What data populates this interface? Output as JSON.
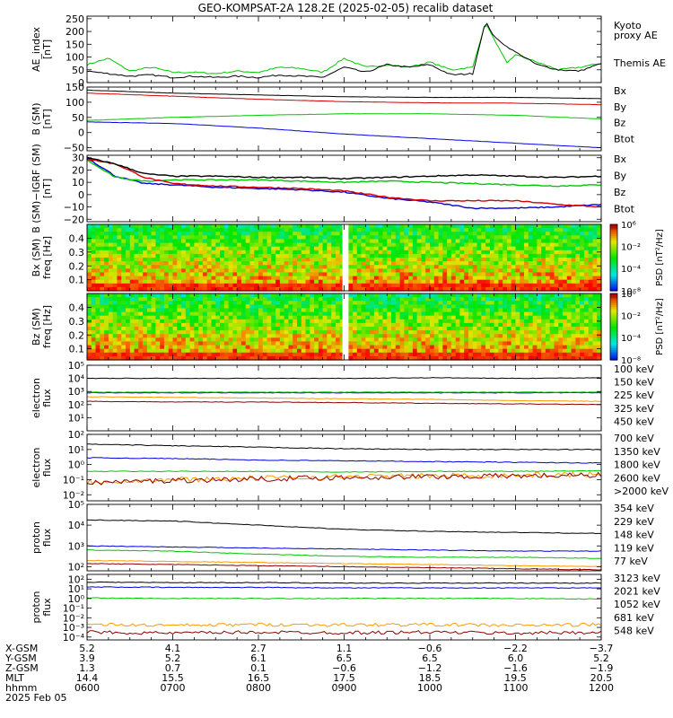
{
  "title": "GEO-KOMPSAT-2A 128.2E (2025-02-05) recalib dataset",
  "colors": {
    "black": "#000000",
    "red": "#d40000",
    "green": "#00c800",
    "blue": "#0000e0",
    "orange": "#ff9900",
    "teal": "#00c8c8",
    "darkred": "#900000",
    "bz": "#c80000"
  },
  "chart_data": [
    {
      "type": "line",
      "panel": "ae",
      "ylabel": [
        "AE_index",
        "[nT]"
      ],
      "ylim": [
        0,
        260
      ],
      "yticks": [
        {
          "v": 0,
          "l": "0"
        },
        {
          "v": 50,
          "l": "50"
        },
        {
          "v": 100,
          "l": "100"
        },
        {
          "v": 150,
          "l": "150"
        },
        {
          "v": 200,
          "l": "200"
        },
        {
          "v": 250,
          "l": "250"
        }
      ],
      "x": [
        6.0,
        6.25,
        6.5,
        6.75,
        7.0,
        7.25,
        7.5,
        7.75,
        8.0,
        8.25,
        8.5,
        8.75,
        9.0,
        9.25,
        9.5,
        9.75,
        10.0,
        10.25,
        10.5,
        10.65,
        10.75,
        10.9,
        11.0,
        11.25,
        11.5,
        11.75,
        12.0
      ],
      "series": [
        {
          "name": "Kyoto proxy AE",
          "color": "#00c800",
          "values": [
            70,
            95,
            45,
            60,
            40,
            40,
            35,
            45,
            40,
            60,
            55,
            40,
            95,
            60,
            70,
            60,
            80,
            50,
            60,
            235,
            170,
            75,
            110,
            80,
            50,
            60,
            75
          ]
        },
        {
          "name": "Themis AE",
          "color": "#000000",
          "values": [
            45,
            35,
            25,
            30,
            20,
            25,
            20,
            25,
            20,
            30,
            25,
            20,
            60,
            40,
            70,
            60,
            70,
            30,
            35,
            240,
            180,
            140,
            120,
            70,
            50,
            45,
            75
          ]
        }
      ],
      "legend": [
        {
          "text": "Kyoto",
          "color": "#00c800"
        },
        {
          "text": "proxy AE",
          "color": "#00c800"
        },
        {
          "text": "Themis AE",
          "color": "#000000"
        }
      ]
    },
    {
      "type": "line",
      "panel": "bsm",
      "ylabel": [
        "B (SM)",
        "[nT]"
      ],
      "ylim": [
        -60,
        150
      ],
      "yticks": [
        {
          "v": -50,
          "l": "−50"
        },
        {
          "v": 0,
          "l": "0"
        },
        {
          "v": 50,
          "l": "50"
        },
        {
          "v": 100,
          "l": "100"
        },
        {
          "v": 150,
          "l": "150"
        }
      ],
      "x": [
        6,
        7,
        8,
        9,
        10,
        11,
        12
      ],
      "series": [
        {
          "name": "Bx",
          "color": "#0000e0",
          "values": [
            35,
            30,
            15,
            -5,
            -20,
            -35,
            -50
          ]
        },
        {
          "name": "By",
          "color": "#00c800",
          "values": [
            40,
            50,
            57,
            62,
            62,
            57,
            45
          ]
        },
        {
          "name": "Bz",
          "color": "#d40000",
          "values": [
            130,
            120,
            110,
            102,
            98,
            97,
            92
          ]
        },
        {
          "name": "Btot",
          "color": "#000000",
          "values": [
            140,
            130,
            124,
            118,
            116,
            116,
            112
          ]
        }
      ],
      "legend": [
        {
          "text": "Bx",
          "color": "#0000e0"
        },
        {
          "text": "By",
          "color": "#00c800"
        },
        {
          "text": "Bz",
          "color": "#d40000"
        },
        {
          "text": "Btot",
          "color": "#000000"
        }
      ]
    },
    {
      "type": "line",
      "panel": "bres",
      "ylabel": [
        "B (SM)−IGRF (SM)",
        "[nT]"
      ],
      "ylim": [
        -22,
        32
      ],
      "yticks": [
        {
          "v": -20,
          "l": "−20"
        },
        {
          "v": -10,
          "l": "−10"
        },
        {
          "v": 0,
          "l": "0"
        },
        {
          "v": 10,
          "l": "10"
        },
        {
          "v": 20,
          "l": "20"
        },
        {
          "v": 30,
          "l": "30"
        }
      ],
      "x": [
        6,
        6.33,
        6.67,
        7,
        7.5,
        8,
        8.5,
        9,
        9.5,
        10,
        10.5,
        11,
        11.5,
        12
      ],
      "series": [
        {
          "name": "Bx",
          "color": "#0000e0",
          "values": [
            30,
            15,
            9,
            8,
            6,
            5,
            4,
            2,
            -3,
            -6,
            -11,
            -11,
            -10,
            -8
          ]
        },
        {
          "name": "By",
          "color": "#00c800",
          "values": [
            28,
            14,
            11,
            12,
            12,
            12,
            11,
            10,
            11,
            10,
            9,
            8,
            7,
            8
          ]
        },
        {
          "name": "Bz",
          "color": "#d40000",
          "values": [
            29,
            25,
            14,
            9,
            7,
            6,
            5,
            3,
            -2,
            -5,
            -5,
            -5,
            -8,
            -10
          ]
        },
        {
          "name": "Btot",
          "color": "#000000",
          "values": [
            30,
            25,
            17,
            15,
            15,
            14,
            14,
            13,
            14,
            15,
            16,
            15,
            14,
            15
          ]
        }
      ],
      "legend": [
        {
          "text": "Bx",
          "color": "#0000e0"
        },
        {
          "text": "By",
          "color": "#00c800"
        },
        {
          "text": "Bz",
          "color": "#d40000"
        },
        {
          "text": "Btot",
          "color": "#000000"
        }
      ]
    },
    {
      "type": "heatmap",
      "panel": "bxspec",
      "ylabel": [
        "Bx (SM)",
        "freq [Hz]"
      ],
      "ylim": [
        0.02,
        0.5
      ],
      "yticks": [
        {
          "v": 0.1,
          "l": "0.1"
        },
        {
          "v": 0.2,
          "l": "0.2"
        },
        {
          "v": 0.3,
          "l": "0.3"
        },
        {
          "v": 0.4,
          "l": "0.4"
        }
      ],
      "gap_x": [
        8.98,
        9.05
      ],
      "colorbar": {
        "label": "PSD [nT²/Hz]",
        "ticks": [
          {
            "v": 0,
            "l": "10⁶"
          },
          {
            "v": 0.33,
            "l": "10⁻²"
          },
          {
            "v": 0.66,
            "l": "10⁻⁴"
          },
          {
            "v": 1,
            "l": "10⁻⁸"
          }
        ]
      }
    },
    {
      "type": "heatmap",
      "panel": "bzspec",
      "ylabel": [
        "Bz (SM)",
        "freq [Hz]"
      ],
      "ylim": [
        0.02,
        0.5
      ],
      "yticks": [
        {
          "v": 0.1,
          "l": "0.1"
        },
        {
          "v": 0.2,
          "l": "0.2"
        },
        {
          "v": 0.3,
          "l": "0.3"
        },
        {
          "v": 0.4,
          "l": "0.4"
        }
      ],
      "gap_x": [
        8.98,
        9.05
      ],
      "colorbar": {
        "label": "PSD [nT²/Hz]",
        "ticks": [
          {
            "v": 0,
            "l": "10⁰"
          },
          {
            "v": 0.33,
            "l": "10⁻²"
          },
          {
            "v": 0.66,
            "l": "10⁻⁴"
          },
          {
            "v": 1,
            "l": "10⁻⁸"
          }
        ]
      }
    },
    {
      "type": "line",
      "panel": "eflux1",
      "ylabel": [
        "electron",
        "flux"
      ],
      "log": true,
      "ylim": [
        0,
        5
      ],
      "yticks": [
        {
          "v": 1,
          "l": "10¹"
        },
        {
          "v": 2,
          "l": "10²"
        },
        {
          "v": 3,
          "l": "10³"
        },
        {
          "v": 4,
          "l": "10⁴"
        },
        {
          "v": 5,
          "l": "10⁵"
        }
      ],
      "x": [
        6,
        7,
        8,
        9,
        10,
        11,
        12
      ],
      "series": [
        {
          "name": "100 keV",
          "color": "#000000",
          "values": [
            4.0,
            4.0,
            4.0,
            4.0,
            4.05,
            4.0,
            4.05
          ]
        },
        {
          "name": "150 keV",
          "color": "#0000e0",
          "values": [
            2.9,
            2.9,
            2.9,
            2.9,
            2.9,
            2.9,
            2.9
          ]
        },
        {
          "name": "225 keV",
          "color": "#00c800",
          "values": [
            2.95,
            2.95,
            2.95,
            2.95,
            2.95,
            2.95,
            2.95
          ]
        },
        {
          "name": "325 keV",
          "color": "#ff9900",
          "values": [
            2.6,
            2.55,
            2.5,
            2.45,
            2.4,
            2.3,
            2.25
          ]
        },
        {
          "name": "450 keV",
          "color": "#900000",
          "values": [
            2.25,
            2.2,
            2.2,
            2.15,
            2.1,
            2.05,
            2.0
          ]
        }
      ],
      "legend": [
        {
          "text": "100 keV",
          "color": "#000000"
        },
        {
          "text": "150 keV",
          "color": "#0000e0"
        },
        {
          "text": "225 keV",
          "color": "#00c800"
        },
        {
          "text": "325 keV",
          "color": "#ff9900"
        },
        {
          "text": "450 keV",
          "color": "#900000"
        }
      ]
    },
    {
      "type": "line",
      "panel": "eflux2",
      "ylabel": [
        "electron",
        "flux"
      ],
      "log": true,
      "ylim": [
        -2.4,
        2
      ],
      "yticks": [
        {
          "v": -2,
          "l": "10⁻²"
        },
        {
          "v": -1,
          "l": "10⁻¹"
        },
        {
          "v": 0,
          "l": "10⁰"
        },
        {
          "v": 1,
          "l": "10¹"
        },
        {
          "v": 2,
          "l": "10²"
        }
      ],
      "x": [
        6,
        7,
        8,
        9,
        10,
        11,
        12
      ],
      "series": [
        {
          "name": "700 keV",
          "color": "#000000",
          "values": [
            1.35,
            1.25,
            1.15,
            1.05,
            1.0,
            1.0,
            1.0
          ]
        },
        {
          "name": "1350 keV",
          "color": "#0000e0",
          "values": [
            0.45,
            0.4,
            0.3,
            0.25,
            0.2,
            0.15,
            0.1
          ]
        },
        {
          "name": "1800 keV",
          "color": "#00c800",
          "values": [
            -0.45,
            -0.45,
            -0.45,
            -0.5,
            -0.45,
            -0.45,
            -0.4
          ]
        },
        {
          "name": "2600 keV",
          "color": "#ff9900",
          "values": [
            -1.15,
            -1.0,
            -0.9,
            -0.8,
            -0.75,
            -0.7,
            -0.65
          ]
        },
        {
          "name": ">2000 keV",
          "color": "#900000",
          "values": [
            -1.2,
            -1.05,
            -0.95,
            -0.85,
            -0.8,
            -0.75,
            -0.7
          ]
        }
      ],
      "legend": [
        {
          "text": "700 keV",
          "color": "#000000"
        },
        {
          "text": "1350 keV",
          "color": "#0000e0"
        },
        {
          "text": "1800 keV",
          "color": "#00c800"
        },
        {
          "text": "2600 keV",
          "color": "#ff9900"
        },
        {
          "text": ">2000 keV",
          "color": "#900000"
        }
      ]
    },
    {
      "type": "line",
      "panel": "pflux1",
      "ylabel": [
        "proton",
        "flux"
      ],
      "log": true,
      "ylim": [
        1.8,
        5
      ],
      "yticks": [
        {
          "v": 2,
          "l": "10²"
        },
        {
          "v": 3,
          "l": "10³"
        },
        {
          "v": 4,
          "l": "10⁴"
        },
        {
          "v": 5,
          "l": "10⁵"
        }
      ],
      "x": [
        6,
        7,
        8,
        9,
        10,
        11,
        12
      ],
      "series": [
        {
          "name": "354 keV",
          "color": "#900000",
          "values": [
            2.15,
            2.1,
            2.05,
            2.0,
            1.95,
            1.9,
            1.85
          ]
        },
        {
          "name": "229 keV",
          "color": "#ff9900",
          "values": [
            2.3,
            2.25,
            2.2,
            2.15,
            2.1,
            2.05,
            2.0
          ]
        },
        {
          "name": "148 keV",
          "color": "#00c800",
          "values": [
            2.8,
            2.75,
            2.6,
            2.5,
            2.45,
            2.45,
            2.4
          ]
        },
        {
          "name": "119 keV",
          "color": "#0000e0",
          "values": [
            3.0,
            2.95,
            2.9,
            2.85,
            2.8,
            2.75,
            2.75
          ]
        },
        {
          "name": "77 keV",
          "color": "#000000",
          "values": [
            4.25,
            4.2,
            4.0,
            3.8,
            3.7,
            3.65,
            3.6
          ]
        }
      ],
      "legend": [
        {
          "text": "354 keV",
          "color": "#900000"
        },
        {
          "text": "229 keV",
          "color": "#ff9900"
        },
        {
          "text": "148 keV",
          "color": "#00c800"
        },
        {
          "text": "119 keV",
          "color": "#0000e0"
        },
        {
          "text": "77 keV",
          "color": "#000000"
        }
      ]
    },
    {
      "type": "line",
      "panel": "pflux2",
      "ylabel": [
        "proton",
        "flux"
      ],
      "log": true,
      "ylim": [
        -4.3,
        2.5
      ],
      "yticks": [
        {
          "v": -4,
          "l": "10⁻⁴"
        },
        {
          "v": -3,
          "l": "10⁻³"
        },
        {
          "v": -2,
          "l": "10⁻²"
        },
        {
          "v": -1,
          "l": "10⁻¹"
        },
        {
          "v": 0,
          "l": "10⁰"
        },
        {
          "v": 1,
          "l": "10¹"
        },
        {
          "v": 2,
          "l": "10²"
        }
      ],
      "x": [
        6,
        7,
        8,
        9,
        10,
        11,
        12
      ],
      "series": [
        {
          "name": "3123 keV",
          "color": "#900000",
          "values": [
            -3.5,
            -3.6,
            -3.5,
            -3.55,
            -3.5,
            -3.6,
            -3.5
          ]
        },
        {
          "name": "2021 keV",
          "color": "#ff9900",
          "values": [
            -2.7,
            -2.8,
            -2.7,
            -2.75,
            -2.7,
            -2.8,
            -2.7
          ]
        },
        {
          "name": "1052 keV",
          "color": "#00c800",
          "values": [
            0.05,
            0.0,
            0.0,
            0.0,
            0.0,
            0.0,
            -0.05
          ]
        },
        {
          "name": "681 keV",
          "color": "#0000e0",
          "values": [
            1.2,
            1.15,
            1.15,
            1.1,
            1.1,
            1.1,
            1.1
          ]
        },
        {
          "name": "548 keV",
          "color": "#000000",
          "values": [
            1.7,
            1.65,
            1.65,
            1.6,
            1.6,
            1.6,
            1.6
          ]
        }
      ],
      "legend": [
        {
          "text": "3123 keV",
          "color": "#900000"
        },
        {
          "text": "2021 keV",
          "color": "#ff9900"
        },
        {
          "text": "1052 keV",
          "color": "#00c800"
        },
        {
          "text": "681 keV",
          "color": "#0000e0"
        },
        {
          "text": "548 keV",
          "color": "#000000"
        }
      ]
    }
  ],
  "ephemeris": {
    "labels": [
      "X-GSM",
      "Y-GSM",
      "Z-GSM",
      "MLT",
      "hhmm",
      "2025 Feb 05"
    ],
    "columns": [
      {
        "x": 6,
        "vals": [
          "5.2",
          "3.9",
          "1.3",
          "14.4",
          "0600"
        ]
      },
      {
        "x": 7,
        "vals": [
          "4.1",
          "5.2",
          "0.7",
          "15.5",
          "0700"
        ]
      },
      {
        "x": 8,
        "vals": [
          "2.7",
          "6.1",
          "0.1",
          "16.5",
          "0800"
        ]
      },
      {
        "x": 9,
        "vals": [
          "1.1",
          "6.5",
          "−0.6",
          "17.5",
          "0900"
        ]
      },
      {
        "x": 10,
        "vals": [
          "−0.6",
          "6.5",
          "−1.2",
          "18.5",
          "1000"
        ]
      },
      {
        "x": 11,
        "vals": [
          "−2.2",
          "6.0",
          "−1.6",
          "19.5",
          "1100"
        ]
      },
      {
        "x": 12,
        "vals": [
          "−3.7",
          "5.2",
          "−1.9",
          "20.5",
          "1200"
        ]
      }
    ]
  }
}
